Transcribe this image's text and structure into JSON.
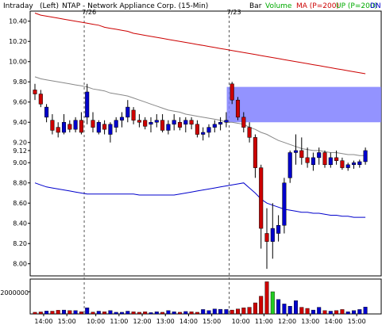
{
  "header": {
    "period": "Intraday",
    "scale": "(Left)",
    "symbol": "NTAP - Network Appliance Corp. (15-Min)",
    "bar_label": "Bar",
    "volume_label": "Volume",
    "ma_label": "MA (P=200)",
    "up_label": "UP (P=200)",
    "dn_label": "DN"
  },
  "colors": {
    "up": "#0000cc",
    "down": "#cc0000",
    "ma": "#cc0000",
    "up_band": "#888888",
    "dn_band": "#0000cc",
    "volume_label": "#00aa00",
    "highlight": "#8080ff",
    "highlight_volume": "#22cc22"
  },
  "chart_data": {
    "type": "candlestick",
    "title": "NTAP - Network Appliance Corp. (15-Min)",
    "y_ticks": [
      "10.40",
      "10.20",
      "10.00",
      "9.80",
      "9.60",
      "9.40",
      "9.20",
      "9.12",
      "9.00",
      "8.80",
      "8.60",
      "8.40",
      "8.20",
      "8.00"
    ],
    "x_ticks": [
      "14:00",
      "15:00",
      "10:00",
      "11:00",
      "12:00",
      "13:00",
      "14:00",
      "15:00",
      "10:00",
      "11:00",
      "12:00",
      "13:00",
      "14:00",
      "15:00"
    ],
    "x_tick_positions": [
      1.5,
      5.5,
      10.5,
      14.5,
      18.5,
      22.5,
      26.5,
      30.5,
      35.5,
      39.5,
      43.5,
      47.5,
      51.5,
      55.5
    ],
    "session_labels": [
      {
        "text": "7/26",
        "bar": 8.5
      },
      {
        "text": "7/23",
        "bar": 33.5
      }
    ],
    "ylim": [
      7.88,
      10.5
    ],
    "volume_tick": "2000000",
    "volume_max": 3000000,
    "bar_count": 58,
    "candles": [
      [
        9.72,
        9.78,
        9.62,
        9.68
      ],
      [
        9.68,
        9.72,
        9.55,
        9.58
      ],
      [
        9.45,
        9.58,
        9.4,
        9.55
      ],
      [
        9.42,
        9.48,
        9.28,
        9.32
      ],
      [
        9.35,
        9.4,
        9.25,
        9.3
      ],
      [
        9.3,
        9.48,
        9.28,
        9.4
      ],
      [
        9.38,
        9.42,
        9.3,
        9.33
      ],
      [
        9.33,
        9.45,
        9.3,
        9.42
      ],
      [
        9.42,
        9.5,
        9.28,
        9.3
      ],
      [
        9.45,
        9.78,
        9.38,
        9.7
      ],
      [
        9.42,
        9.5,
        9.3,
        9.35
      ],
      [
        9.3,
        9.42,
        9.28,
        9.4
      ],
      [
        9.38,
        9.42,
        9.28,
        9.33
      ],
      [
        9.28,
        9.4,
        9.2,
        9.38
      ],
      [
        9.35,
        9.45,
        9.3,
        9.42
      ],
      [
        9.42,
        9.5,
        9.35,
        9.45
      ],
      [
        9.45,
        9.62,
        9.4,
        9.55
      ],
      [
        9.52,
        9.55,
        9.38,
        9.42
      ],
      [
        9.42,
        9.48,
        9.35,
        9.4
      ],
      [
        9.42,
        9.45,
        9.33,
        9.36
      ],
      [
        9.38,
        9.45,
        9.3,
        9.4
      ],
      [
        9.4,
        9.48,
        9.35,
        9.42
      ],
      [
        9.42,
        9.48,
        9.3,
        9.32
      ],
      [
        9.32,
        9.42,
        9.28,
        9.38
      ],
      [
        9.38,
        9.48,
        9.32,
        9.42
      ],
      [
        9.4,
        9.45,
        9.32,
        9.35
      ],
      [
        9.38,
        9.45,
        9.3,
        9.42
      ],
      [
        9.42,
        9.45,
        9.33,
        9.38
      ],
      [
        9.38,
        9.42,
        9.25,
        9.28
      ],
      [
        9.28,
        9.35,
        9.22,
        9.3
      ],
      [
        9.3,
        9.38,
        9.25,
        9.35
      ],
      [
        9.35,
        9.42,
        9.3,
        9.38
      ],
      [
        9.38,
        9.45,
        9.32,
        9.4
      ],
      [
        9.4,
        9.5,
        9.35,
        9.42
      ],
      [
        9.78,
        9.8,
        9.58,
        9.62
      ],
      [
        9.62,
        9.65,
        9.42,
        9.45
      ],
      [
        9.45,
        9.5,
        9.3,
        9.35
      ],
      [
        9.35,
        9.4,
        9.2,
        9.25
      ],
      [
        9.25,
        9.28,
        8.85,
        8.95
      ],
      [
        8.95,
        8.98,
        8.15,
        8.35
      ],
      [
        8.3,
        8.55,
        7.95,
        8.22
      ],
      [
        8.22,
        8.6,
        8.05,
        8.35
      ],
      [
        8.3,
        8.48,
        8.22,
        8.38
      ],
      [
        8.38,
        8.85,
        8.3,
        8.8
      ],
      [
        8.85,
        9.12,
        8.8,
        9.1
      ],
      [
        9.1,
        9.28,
        8.98,
        9.12
      ],
      [
        9.12,
        9.25,
        8.98,
        9.05
      ],
      [
        9.05,
        9.15,
        8.95,
        9.0
      ],
      [
        8.98,
        9.1,
        8.92,
        9.05
      ],
      [
        9.05,
        9.15,
        8.98,
        9.1
      ],
      [
        9.1,
        9.12,
        8.95,
        8.98
      ],
      [
        8.98,
        9.1,
        8.95,
        9.05
      ],
      [
        9.05,
        9.12,
        8.98,
        9.02
      ],
      [
        9.02,
        9.05,
        8.93,
        8.95
      ],
      [
        8.95,
        9.0,
        8.92,
        8.98
      ],
      [
        8.98,
        9.02,
        8.94,
        9.0
      ],
      [
        8.98,
        9.03,
        8.95,
        9.01
      ],
      [
        9.01,
        9.15,
        8.98,
        9.12
      ]
    ],
    "volumes": [
      150000,
      180000,
      260000,
      250000,
      330000,
      350000,
      300000,
      300000,
      200000,
      550000,
      170000,
      250000,
      200000,
      300000,
      150000,
      150000,
      250000,
      200000,
      150000,
      200000,
      120000,
      200000,
      150000,
      300000,
      200000,
      150000,
      220000,
      200000,
      150000,
      400000,
      300000,
      450000,
      420000,
      400000,
      350000,
      450000,
      550000,
      600000,
      1000000,
      1600000,
      2900000,
      2000000,
      1300000,
      900000,
      700000,
      1200000,
      600000,
      500000,
      350000,
      600000,
      300000,
      250000,
      300000,
      400000,
      200000,
      300000,
      400000,
      620000
    ],
    "ma": [
      10.48,
      10.46,
      10.45,
      10.44,
      10.43,
      10.42,
      10.41,
      10.4,
      10.39,
      10.38,
      10.37,
      10.36,
      10.34,
      10.33,
      10.32,
      10.31,
      10.3,
      10.28,
      10.27,
      10.26,
      10.25,
      10.24,
      10.23,
      10.22,
      10.21,
      10.2,
      10.19,
      10.18,
      10.17,
      10.16,
      10.15,
      10.14,
      10.13,
      10.12,
      10.11,
      10.1,
      10.09,
      10.08,
      10.07,
      10.06,
      10.05,
      10.04,
      10.03,
      10.02,
      10.01,
      10.0,
      9.99,
      9.98,
      9.97,
      9.96,
      9.95,
      9.94,
      9.93,
      9.92,
      9.91,
      9.9,
      9.89,
      9.88
    ],
    "up_band": [
      9.85,
      9.83,
      9.82,
      9.81,
      9.8,
      9.79,
      9.78,
      9.77,
      9.76,
      9.75,
      9.73,
      9.72,
      9.71,
      9.69,
      9.68,
      9.67,
      9.66,
      9.64,
      9.62,
      9.6,
      9.58,
      9.56,
      9.54,
      9.52,
      9.51,
      9.5,
      9.48,
      9.47,
      9.46,
      9.45,
      9.44,
      9.43,
      9.42,
      9.4,
      9.4,
      9.39,
      9.38,
      9.35,
      9.33,
      9.3,
      9.28,
      9.25,
      9.22,
      9.2,
      9.18,
      9.16,
      9.14,
      9.13,
      9.12,
      9.12,
      9.11,
      9.1,
      9.1,
      9.09,
      9.08,
      9.08,
      9.07,
      9.07
    ],
    "dn_band": [
      8.8,
      8.78,
      8.76,
      8.75,
      8.74,
      8.73,
      8.72,
      8.71,
      8.7,
      8.69,
      8.69,
      8.69,
      8.69,
      8.69,
      8.69,
      8.69,
      8.69,
      8.69,
      8.68,
      8.68,
      8.68,
      8.68,
      8.68,
      8.68,
      8.68,
      8.69,
      8.7,
      8.71,
      8.72,
      8.73,
      8.74,
      8.75,
      8.76,
      8.77,
      8.78,
      8.79,
      8.8,
      8.75,
      8.7,
      8.64,
      8.6,
      8.58,
      8.56,
      8.54,
      8.53,
      8.52,
      8.51,
      8.51,
      8.5,
      8.5,
      8.49,
      8.48,
      8.48,
      8.47,
      8.47,
      8.46,
      8.46,
      8.46
    ],
    "highlight_zone": {
      "start_bar": 33.5,
      "y_range": [
        9.4,
        9.75
      ]
    }
  }
}
